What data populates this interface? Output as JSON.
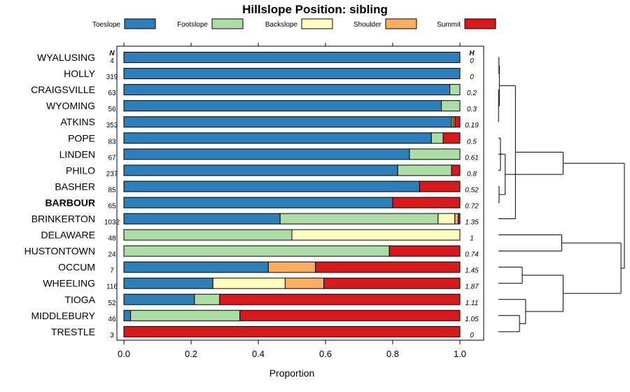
{
  "chart_data": {
    "type": "bar",
    "subtype": "stacked-horizontal-proportion",
    "title": "Hillslope Position: sibling",
    "xlabel": "Proportion",
    "xlim": [
      0,
      1
    ],
    "x_ticks": [
      "0.0",
      "0.2",
      "0.4",
      "0.6",
      "0.8",
      "1.0"
    ],
    "n_header": "N",
    "h_header": "H",
    "legend_position": "top",
    "series": [
      {
        "name": "Toeslope",
        "color": "#2c7fb8"
      },
      {
        "name": "Footslope",
        "color": "#abdda4"
      },
      {
        "name": "Backslope",
        "color": "#ffffbf"
      },
      {
        "name": "Shoulder",
        "color": "#fdae61"
      },
      {
        "name": "Summit",
        "color": "#d7191c"
      }
    ],
    "rows": [
      {
        "label": "WYALUSING",
        "n": "4",
        "h": "0",
        "bold": false,
        "values": [
          1.0,
          0,
          0,
          0,
          0
        ]
      },
      {
        "label": "HOLLY",
        "n": "319",
        "h": "0",
        "bold": false,
        "values": [
          1.0,
          0,
          0,
          0,
          0
        ]
      },
      {
        "label": "CRAIGSVILLE",
        "n": "63",
        "h": "0.2",
        "bold": false,
        "values": [
          0.97,
          0.03,
          0,
          0,
          0
        ]
      },
      {
        "label": "WYOMING",
        "n": "56",
        "h": "0.3",
        "bold": false,
        "values": [
          0.945,
          0.055,
          0,
          0,
          0
        ]
      },
      {
        "label": "ATKINS",
        "n": "353",
        "h": "0.19",
        "bold": false,
        "values": [
          0.975,
          0.005,
          0,
          0.005,
          0.015
        ]
      },
      {
        "label": "POPE",
        "n": "83",
        "h": "0.5",
        "bold": false,
        "values": [
          0.915,
          0.035,
          0,
          0,
          0.05
        ]
      },
      {
        "label": "LINDEN",
        "n": "67",
        "h": "0.61",
        "bold": false,
        "values": [
          0.85,
          0.15,
          0,
          0,
          0
        ]
      },
      {
        "label": "PHILO",
        "n": "237",
        "h": "0.8",
        "bold": false,
        "values": [
          0.815,
          0.16,
          0,
          0,
          0.025
        ]
      },
      {
        "label": "BASHER",
        "n": "85",
        "h": "0.52",
        "bold": false,
        "values": [
          0.88,
          0,
          0,
          0,
          0.12
        ]
      },
      {
        "label": "BARBOUR",
        "n": "65",
        "h": "0.72",
        "bold": true,
        "values": [
          0.8,
          0,
          0,
          0,
          0.2
        ]
      },
      {
        "label": "BRINKERTON",
        "n": "1032",
        "h": "1.35",
        "bold": false,
        "values": [
          0.465,
          0.47,
          0.05,
          0.01,
          0.005
        ]
      },
      {
        "label": "DELAWARE",
        "n": "48",
        "h": "1",
        "bold": false,
        "values": [
          0,
          0.5,
          0.5,
          0,
          0
        ]
      },
      {
        "label": "HUSTONTOWN",
        "n": "24",
        "h": "0.74",
        "bold": false,
        "values": [
          0,
          0.79,
          0,
          0,
          0.21
        ]
      },
      {
        "label": "OCCUM",
        "n": "7",
        "h": "1.45",
        "bold": false,
        "values": [
          0.43,
          0,
          0,
          0.14,
          0.43
        ]
      },
      {
        "label": "WHEELING",
        "n": "116",
        "h": "1.87",
        "bold": false,
        "values": [
          0.265,
          0,
          0.215,
          0.115,
          0.405
        ]
      },
      {
        "label": "TIOGA",
        "n": "52",
        "h": "1.11",
        "bold": false,
        "values": [
          0.21,
          0.075,
          0,
          0,
          0.715
        ]
      },
      {
        "label": "MIDDLEBURY",
        "n": "46",
        "h": "1.05",
        "bold": false,
        "values": [
          0.02,
          0.325,
          0,
          0,
          0.655
        ]
      },
      {
        "label": "TRESTLE",
        "n": "3",
        "h": "0",
        "bold": false,
        "values": [
          0,
          0,
          0,
          0,
          1.0
        ]
      }
    ],
    "dendrogram": {
      "orientation": "right",
      "merges": [
        {
          "a": 0,
          "b": 1,
          "h": 0.08
        },
        {
          "a": 2,
          "b": 4,
          "h": 0.02
        },
        {
          "a": "m1",
          "b": 3,
          "h": 0.04
        },
        {
          "a": "m0",
          "b": "m2",
          "h": 0.14
        },
        {
          "a": 8,
          "b": 9,
          "h": 0.1
        },
        {
          "a": 5,
          "b": 7,
          "h": 0.3
        },
        {
          "a": "m5",
          "b": 6,
          "h": 0.58
        },
        {
          "a": "m6",
          "b": "m4",
          "h": 1.0
        },
        {
          "a": 10,
          "b": "m3",
          "h": 2.5
        },
        {
          "a": 11,
          "b": 12,
          "h": 9.3
        },
        {
          "a": 14,
          "b": 13,
          "h": 3.5
        },
        {
          "a": 17,
          "b": 16,
          "h": 3.1
        },
        {
          "a": 15,
          "b": "m11",
          "h": 4.0
        },
        {
          "a": "m12",
          "b": "m10",
          "h": 9.5
        },
        {
          "a": "m9",
          "b": "m13",
          "h": 18.0
        },
        {
          "a": "m8",
          "b": "m7",
          "h": 9.5
        },
        {
          "a": "m15",
          "b": "m14",
          "h": 18.5
        }
      ]
    }
  }
}
